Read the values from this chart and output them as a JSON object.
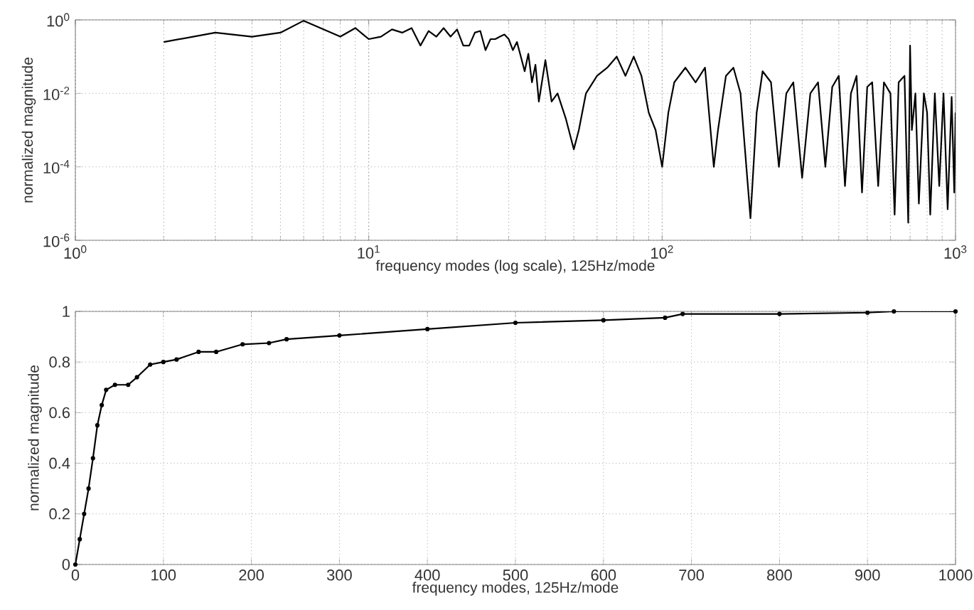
{
  "chart_data": [
    {
      "type": "line",
      "xlabel": "frequency modes (log scale), 125Hz/mode",
      "ylabel": "normalized magnitude",
      "log": "xy",
      "grid": true,
      "xlim": [
        1,
        1000
      ],
      "ylim": [
        1e-06,
        1
      ],
      "xticks": [
        {
          "value": 1,
          "label": "10$^{0}$"
        },
        {
          "value": 10,
          "label": "10$^{1}$"
        },
        {
          "value": 100,
          "label": "10$^{2}$"
        },
        {
          "value": 1000,
          "label": "10$^{3}$"
        }
      ],
      "yticks": [
        {
          "value": 1e-06,
          "label": "10$^{-6}$"
        },
        {
          "value": 0.0001,
          "label": "10$^{-4}$"
        },
        {
          "value": 0.01,
          "label": "10$^{-2}$"
        },
        {
          "value": 1,
          "label": "10$^{0}$"
        }
      ],
      "series": [
        {
          "color": "#000000",
          "x": [
            2,
            3,
            4,
            5,
            6,
            8,
            9,
            10,
            11,
            12,
            13,
            14,
            15,
            16,
            17,
            18,
            19,
            20,
            21,
            22,
            23,
            24,
            25,
            26,
            27,
            28,
            29,
            30,
            31,
            32,
            33,
            34,
            35,
            36,
            37,
            38,
            40,
            42,
            44,
            47,
            50,
            52,
            55,
            60,
            65,
            70,
            75,
            80,
            85,
            90,
            95,
            100,
            105,
            110,
            120,
            130,
            140,
            150,
            155,
            165,
            175,
            185,
            200,
            210,
            220,
            235,
            250,
            265,
            280,
            300,
            320,
            340,
            360,
            380,
            400,
            420,
            440,
            460,
            480,
            500,
            520,
            545,
            570,
            600,
            620,
            640,
            670,
            690,
            700,
            710,
            730,
            750,
            780,
            800,
            820,
            850,
            880,
            910,
            940,
            970,
            990,
            1000
          ],
          "values": [
            0.25,
            0.45,
            0.35,
            0.45,
            0.95,
            0.35,
            0.6,
            0.3,
            0.35,
            0.55,
            0.45,
            0.6,
            0.2,
            0.5,
            0.35,
            0.6,
            0.35,
            0.55,
            0.2,
            0.2,
            0.45,
            0.5,
            0.15,
            0.3,
            0.3,
            0.35,
            0.4,
            0.3,
            0.15,
            0.25,
            0.1,
            0.04,
            0.12,
            0.02,
            0.06,
            0.006,
            0.08,
            0.006,
            0.01,
            0.002,
            0.0003,
            0.001,
            0.01,
            0.03,
            0.05,
            0.1,
            0.03,
            0.1,
            0.03,
            0.003,
            0.001,
            0.0001,
            0.003,
            0.02,
            0.05,
            0.02,
            0.05,
            0.0001,
            0.001,
            0.03,
            0.05,
            0.01,
            4e-06,
            0.003,
            0.04,
            0.02,
            0.0001,
            0.01,
            0.02,
            5e-05,
            0.01,
            0.02,
            0.0001,
            0.015,
            0.03,
            3e-05,
            0.01,
            0.03,
            2e-05,
            0.015,
            0.02,
            3e-05,
            0.02,
            0.01,
            5e-06,
            0.02,
            0.03,
            3e-06,
            0.2,
            0.001,
            0.01,
            1e-05,
            0.01,
            0.003,
            5e-06,
            0.01,
            3e-05,
            0.01,
            7e-06,
            0.008,
            2e-05,
            0.003
          ]
        }
      ]
    },
    {
      "type": "line",
      "xlabel": "frequency modes, 125Hz/mode",
      "ylabel": "normalized magnitude",
      "grid": true,
      "marker": "circle",
      "xlim": [
        0,
        1000
      ],
      "ylim": [
        0,
        1
      ],
      "xticks": [
        0,
        100,
        200,
        300,
        400,
        500,
        600,
        700,
        800,
        900,
        1000
      ],
      "yticks": [
        0,
        0.2,
        0.4,
        0.6,
        0.8,
        1
      ],
      "series": [
        {
          "color": "#000000",
          "x": [
            0,
            5,
            10,
            15,
            20,
            25,
            30,
            35,
            45,
            60,
            70,
            85,
            100,
            115,
            140,
            160,
            190,
            220,
            240,
            300,
            400,
            500,
            600,
            670,
            690,
            800,
            900,
            930,
            1000
          ],
          "values": [
            0,
            0.1,
            0.2,
            0.3,
            0.42,
            0.55,
            0.63,
            0.69,
            0.71,
            0.71,
            0.74,
            0.79,
            0.8,
            0.81,
            0.84,
            0.84,
            0.87,
            0.875,
            0.89,
            0.905,
            0.93,
            0.955,
            0.965,
            0.975,
            0.99,
            0.99,
            0.995,
            1.0,
            1.0
          ]
        }
      ]
    }
  ]
}
